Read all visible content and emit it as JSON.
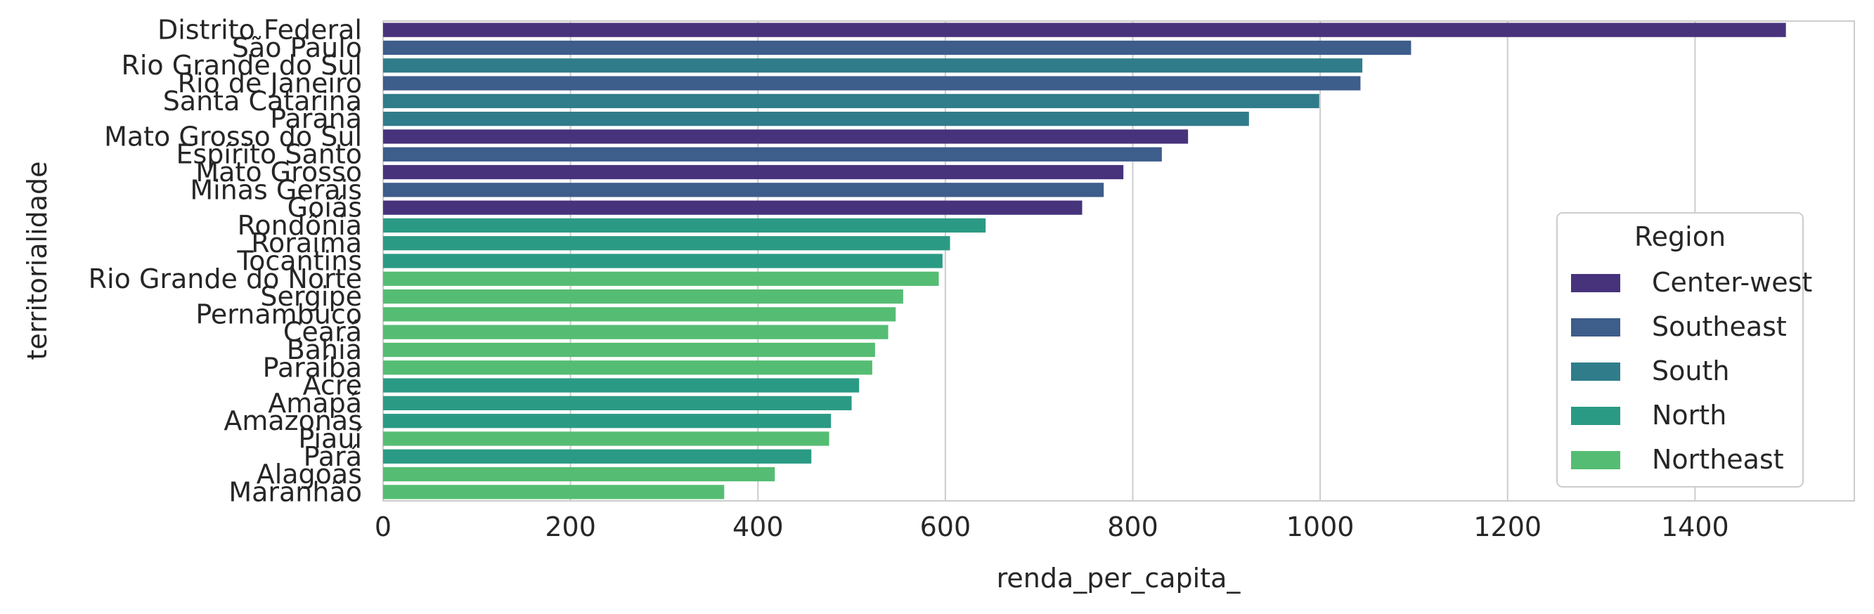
{
  "chart_data": {
    "type": "bar",
    "orientation": "horizontal",
    "categories": [
      "Distrito Federal",
      "São Paulo",
      "Rio Grande do Sul",
      "Rio de Janeiro",
      "Santa Catarina",
      "Paraná",
      "Mato Grosso do Sul",
      "Espírito Santo",
      "Mato Grosso",
      "Minas Gerais",
      "Goiás",
      "Rondônia",
      "Roraima",
      "Tocantins",
      "Rio Grande do Norte",
      "Sergipe",
      "Pernambuco",
      "Ceará",
      "Bahia",
      "Paraíba",
      "Acre",
      "Amapá",
      "Amazonas",
      "Piauí",
      "Pará",
      "Alagoas",
      "Maranhão"
    ],
    "values": [
      1497,
      1097,
      1045,
      1043,
      999,
      924,
      859,
      831,
      790,
      769,
      746,
      643,
      605,
      597,
      593,
      555,
      547,
      539,
      525,
      522,
      508,
      500,
      478,
      476,
      457,
      418,
      364
    ],
    "regions": [
      "Center-west",
      "Southeast",
      "South",
      "Southeast",
      "South",
      "South",
      "Center-west",
      "Southeast",
      "Center-west",
      "Southeast",
      "Center-west",
      "North",
      "North",
      "North",
      "Northeast",
      "Northeast",
      "Northeast",
      "Northeast",
      "Northeast",
      "Northeast",
      "North",
      "North",
      "North",
      "Northeast",
      "North",
      "Northeast",
      "Northeast"
    ],
    "xlabel": "renda_per_capita_",
    "ylabel": "territorialidade",
    "xlim": [
      0,
      1570
    ],
    "xticks": [
      0,
      200,
      400,
      600,
      800,
      1000,
      1200,
      1400
    ],
    "grid": "vertical",
    "legend": {
      "title": "Region",
      "placement": "lower-right",
      "entries": [
        {
          "name": "Center-west",
          "color": "#47337c"
        },
        {
          "name": "Southeast",
          "color": "#3d5d8b"
        },
        {
          "name": "South",
          "color": "#307c8b"
        },
        {
          "name": "North",
          "color": "#2b9a84"
        },
        {
          "name": "Northeast",
          "color": "#55bd73"
        }
      ]
    }
  }
}
